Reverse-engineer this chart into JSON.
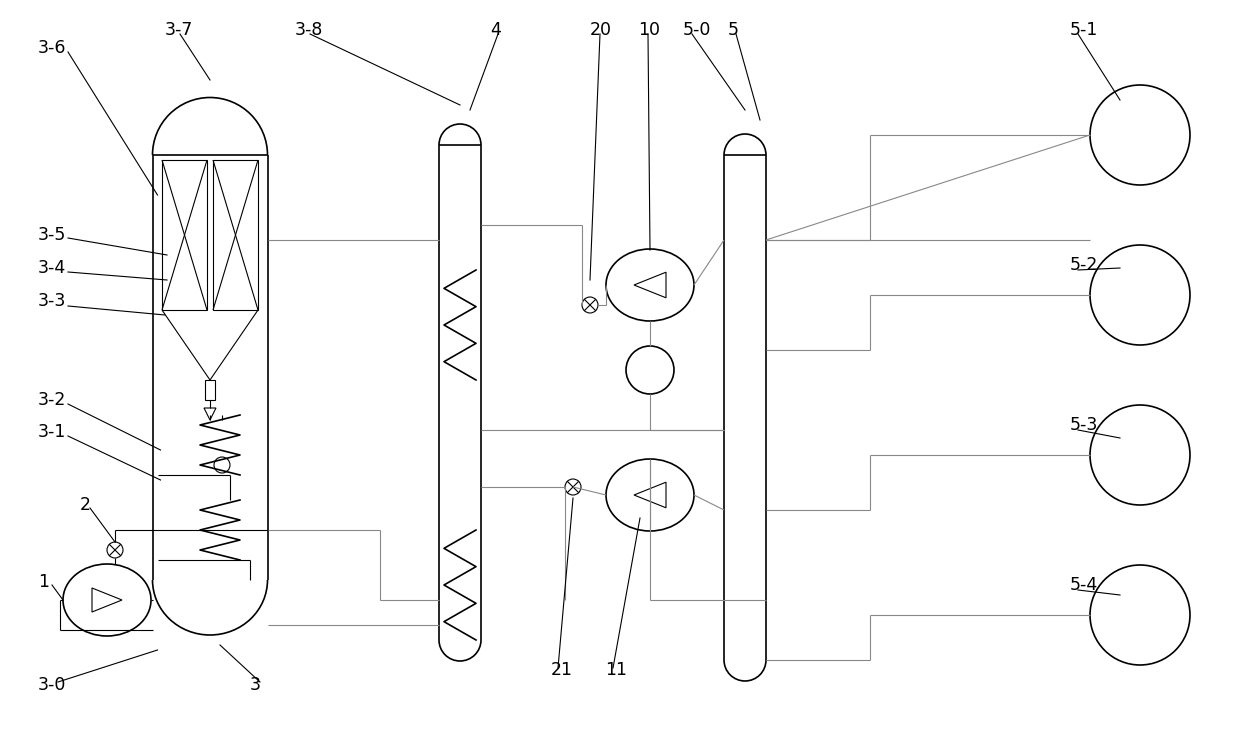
{
  "bg_color": "#ffffff",
  "lw": 1.2,
  "tlw": 0.8
}
